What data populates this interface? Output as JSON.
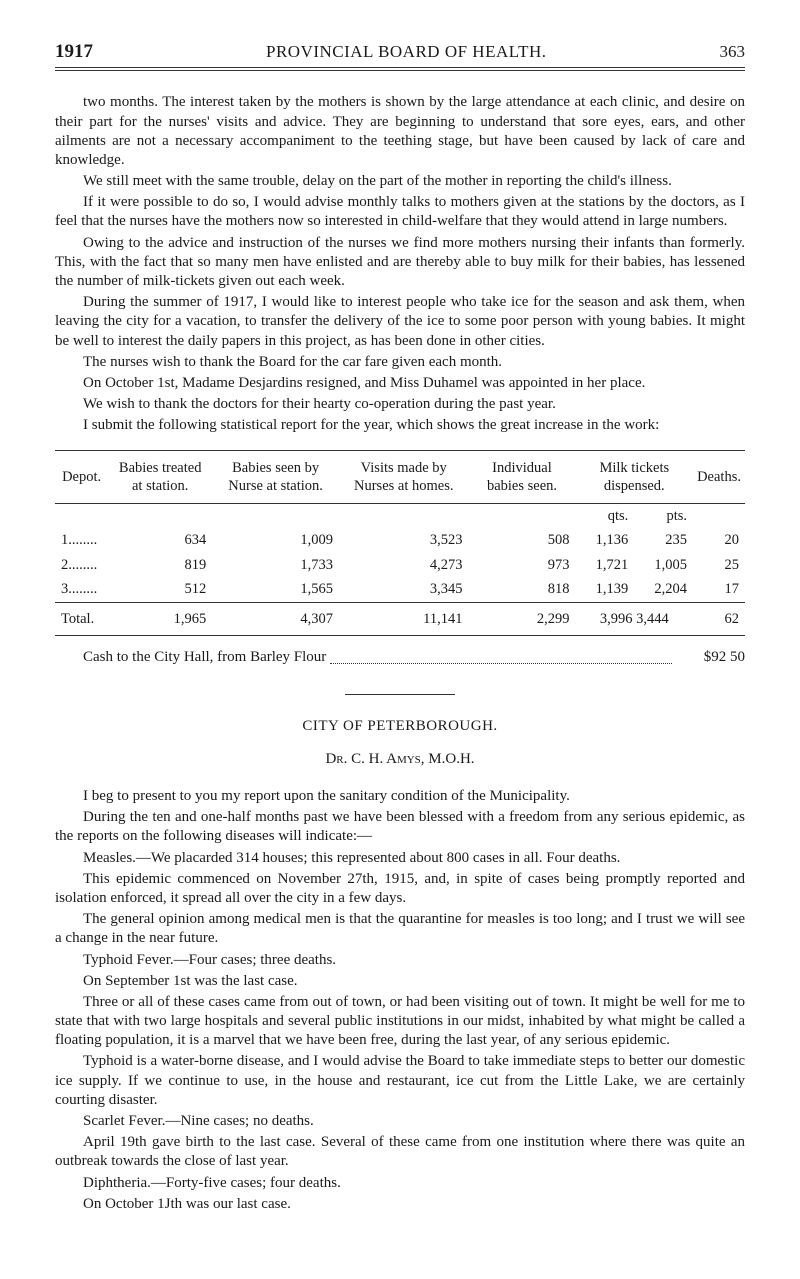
{
  "header": {
    "year": "1917",
    "title": "PROVINCIAL BOARD OF HEALTH.",
    "pagenum": "363"
  },
  "body_paras": [
    "two months.  The interest taken by the mothers is shown by the large attendance at each clinic, and desire on their part for the nurses' visits and advice.  They are begin­ning to understand that sore eyes, ears, and other ailments are not a necessary accom­paniment to the teething stage, but have been caused by lack of care and knowledge.",
    "We still meet with the same trouble, delay on the part of the mother in reporting the child's illness.",
    "If it were possible to do so, I would advise monthly talks to mothers given at the stations by the doctors, as I feel that the nurses have the mothers now so interested in child-welfare that they would attend in large numbers.",
    "Owing to the advice and instruction of the nurses we find more mothers nursing their infants than formerly.  This, with the fact that so many men have enlisted and are thereby able to buy milk for their babies, has lessened the number of milk-tickets given out each week.",
    "During the summer of 1917, I would like to interest people who take ice for the season and ask them, when leaving the city for a vacation, to transfer the delivery of the ice to some poor person with young babies.  It might be well to interest the daily papers in this project, as has been done in other cities.",
    "The nurses wish to thank the Board for the car fare given each month.",
    "On October 1st, Madame Desjardins resigned, and Miss Duhamel was appointed in her place.",
    "We wish to thank the doctors for their hearty co-operation during the past year.",
    "I submit the following statistical report for the year, which shows the great increase in the work:"
  ],
  "table": {
    "columns": [
      "Depot.",
      "Babies treated at station.",
      "Babies seen by Nurse at station.",
      "Visits made by Nurses at homes.",
      "Individual babies seen.",
      "Milk tickets dispensed.",
      "Deaths."
    ],
    "milk_subhead": {
      "qts": "qts.",
      "pts": "pts."
    },
    "rows": [
      {
        "depot": "1........",
        "treated": "634",
        "seen": "1,009",
        "visits": "3,523",
        "indiv": "508",
        "milk_q": "1,136",
        "milk_p": "235",
        "deaths": "20"
      },
      {
        "depot": "2........",
        "treated": "819",
        "seen": "1,733",
        "visits": "4,273",
        "indiv": "973",
        "milk_q": "1,721",
        "milk_p": "1,005",
        "deaths": "25"
      },
      {
        "depot": "3........",
        "treated": "512",
        "seen": "1,565",
        "visits": "3,345",
        "indiv": "818",
        "milk_q": "1,139",
        "milk_p": "2,204",
        "deaths": "17"
      }
    ],
    "total": {
      "depot": "Total.",
      "treated": "1,965",
      "seen": "4,307",
      "visits": "11,141",
      "indiv": "2,299",
      "milk": "3,996   3,444",
      "deaths": "62"
    }
  },
  "cash": {
    "label": "Cash to the City Hall, from Barley Flour",
    "amount": "$92 50"
  },
  "section2": {
    "title": "CITY OF PETERBOROUGH.",
    "byline": "Dr. C. H. Amys, M.O.H.",
    "paras": [
      "I beg to present to you my report upon the sanitary condition of the Municipality.",
      "During the ten and one-half months past we have been blessed with a freedom from any serious epidemic, as the reports on the following diseases will indicate:—",
      "Measles.—We placarded 314 houses;  this represented about 800 cases in all.  Four deaths.",
      "This epidemic commenced on November 27th, 1915, and, in spite of cases being promptly reported and isolation enforced, it spread all over the city in a few days.",
      "The general opinion among medical men is that the quarantine for measles is too long;  and I trust we will see a change in the near future.",
      "Typhoid Fever.—Four cases;  three deaths.",
      "On September 1st was the last case.",
      "Three or all of these cases came from out of town, or had been visiting out of town. It might be well for me to state that with two large hospitals and several public insti­tutions in our midst, inhabited by what might be called a floating population, it is a marvel that we have been free, during the last year, of any serious epidemic.",
      "Typhoid is a water-borne disease, and I would advise the Board to take immediate steps to better our domestic ice supply.  If we continue to use, in the house and restaurant, ice cut from the Little Lake, we are certainly courting disaster.",
      "Scarlet Fever.—Nine cases;  no deaths.",
      "April 19th gave birth to the last case.  Several of these came from one institution where there was quite an outbreak towards the close of last year.",
      "Diphtheria.—Forty-five cases;  four deaths.",
      "On October 1Jth was our last case."
    ]
  }
}
